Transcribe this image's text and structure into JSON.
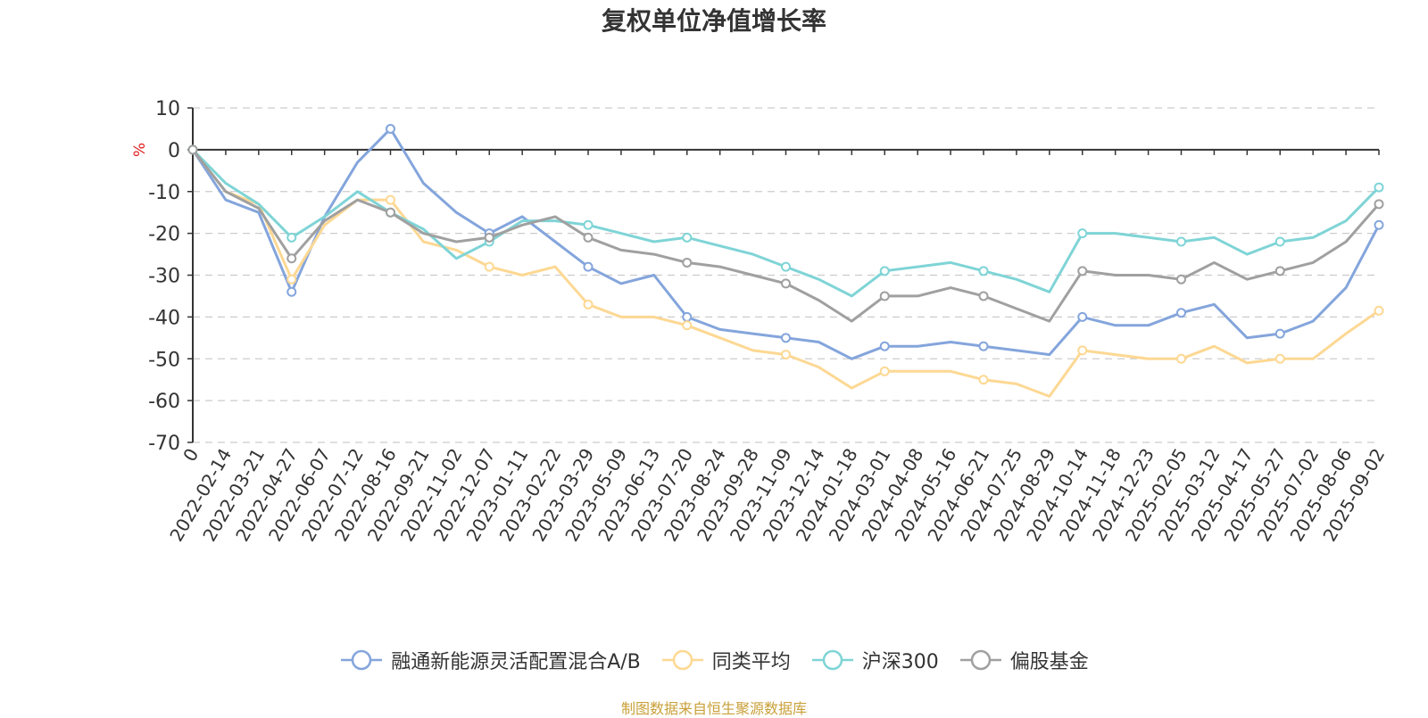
{
  "title": "复权单位净值增长率",
  "source": "制图数据来自恒生聚源数据库",
  "chart_data": {
    "type": "line",
    "ylabel": "%",
    "ylim": [
      -70,
      10
    ],
    "yticks": [
      10,
      0,
      -10,
      -20,
      -30,
      -40,
      -50,
      -60,
      -70
    ],
    "grid": "horizontal dashed",
    "legend_position": "bottom",
    "categories": [
      "0",
      "2022-02-14",
      "2022-03-21",
      "2022-04-27",
      "2022-06-07",
      "2022-07-12",
      "2022-08-16",
      "2022-09-21",
      "2022-11-02",
      "2022-12-07",
      "2023-01-11",
      "2023-02-22",
      "2023-03-29",
      "2023-05-09",
      "2023-06-13",
      "2023-07-20",
      "2023-08-24",
      "2023-09-28",
      "2023-11-09",
      "2023-12-14",
      "2024-01-18",
      "2024-03-01",
      "2024-04-08",
      "2024-05-16",
      "2024-06-21",
      "2024-07-25",
      "2024-08-29",
      "2024-10-14",
      "2024-11-18",
      "2024-12-23",
      "2025-02-05",
      "2025-03-12",
      "2025-04-17",
      "2025-05-27",
      "2025-07-02",
      "2025-08-06",
      "2025-09-02"
    ],
    "series": [
      {
        "name": "融通新能源灵活配置混合A/B",
        "color": "#84a5dc",
        "values": [
          0,
          -12,
          -15,
          -34,
          -16,
          -3,
          5,
          -8,
          -15,
          -20,
          -16,
          -22,
          -28,
          -32,
          -30,
          -40,
          -43,
          -44,
          -45,
          -46,
          -50,
          -47,
          -47,
          -46,
          -47,
          -48,
          -49,
          -40,
          -42,
          -42,
          -39,
          -37,
          -45,
          -44,
          -41,
          -33,
          -18
        ]
      },
      {
        "name": "同类平均",
        "color": "#fdd893",
        "values": [
          0,
          -10,
          -13,
          -31,
          -18,
          -12,
          -12,
          -22,
          -24,
          -28,
          -30,
          -28,
          -37,
          -40,
          -40,
          -42,
          -45,
          -48,
          -49,
          -52,
          -57,
          -53,
          -53,
          -53,
          -55,
          -56,
          -59,
          -48,
          -49,
          -50,
          -50,
          -47,
          -51,
          -50,
          -50,
          -44,
          -38.5
        ]
      },
      {
        "name": "沪深300",
        "color": "#7fd4d6",
        "values": [
          0,
          -8,
          -13,
          -21,
          -16,
          -10,
          -15,
          -19,
          -26,
          -22,
          -17,
          -17,
          -18,
          -20,
          -22,
          -21,
          -23,
          -25,
          -28,
          -31,
          -35,
          -29,
          -28,
          -27,
          -29,
          -31,
          -34,
          -20,
          -20,
          -21,
          -22,
          -21,
          -25,
          -22,
          -21,
          -17,
          -9
        ]
      },
      {
        "name": "偏股基金",
        "color": "#a0a0a0",
        "values": [
          0,
          -10,
          -14,
          -26,
          -17,
          -12,
          -15,
          -20,
          -22,
          -21,
          -18,
          -16,
          -21,
          -24,
          -25,
          -27,
          -28,
          -30,
          -32,
          -36,
          -41,
          -35,
          -35,
          -33,
          -35,
          -38,
          -41,
          -29,
          -30,
          -30,
          -31,
          -27,
          -31,
          -29,
          -27,
          -22,
          -13
        ]
      }
    ]
  }
}
